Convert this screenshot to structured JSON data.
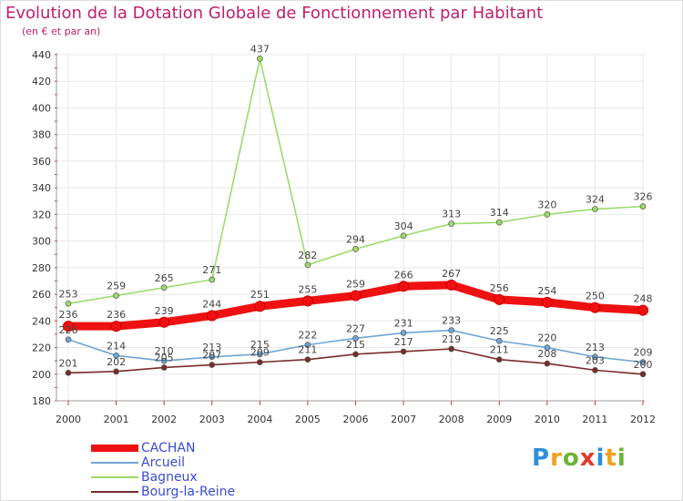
{
  "chart_data": {
    "type": "line",
    "title": "Evolution de la Dotation Globale de Fonctionnement par Habitant",
    "subtitle": "(en € et par an)",
    "x": [
      "2000",
      "2001",
      "2002",
      "2003",
      "2004",
      "2005",
      "2006",
      "2007",
      "2008",
      "2009",
      "2010",
      "2011",
      "2012"
    ],
    "ylim": [
      180,
      440
    ],
    "yticks": [
      180,
      200,
      220,
      240,
      260,
      280,
      300,
      320,
      340,
      360,
      380,
      400,
      420,
      440
    ],
    "grid": true,
    "series": [
      {
        "name": "CACHAN",
        "color": "#ee1111",
        "values": [
          236,
          236,
          239,
          244,
          251,
          255,
          259,
          266,
          267,
          256,
          254,
          250,
          248
        ],
        "labels": [
          "236",
          "236",
          "239",
          "244",
          "251",
          "255",
          "259",
          "266",
          "267",
          "256",
          "254",
          "250",
          "248"
        ]
      },
      {
        "name": "Arcueil",
        "color": "#6fa5d6",
        "values": [
          226,
          214,
          210,
          213,
          215,
          222,
          227,
          231,
          233,
          225,
          220,
          213,
          209
        ],
        "labels": [
          "226",
          "214",
          "210",
          "213",
          "215",
          "222",
          "227",
          "231",
          "233",
          "225",
          "220",
          "213",
          "209"
        ]
      },
      {
        "name": "Bagneux",
        "color": "#9bdb6b",
        "values": [
          253,
          259,
          265,
          271,
          437,
          282,
          294,
          304,
          313,
          314,
          320,
          324,
          326
        ],
        "labels": [
          "253",
          "259",
          "265",
          "271",
          "437",
          "282",
          "294",
          "304",
          "313",
          "314",
          "320",
          "324",
          "326"
        ]
      },
      {
        "name": "Bourg-la-Reine",
        "color": "#7a2b2b",
        "values": [
          201,
          202,
          205,
          207,
          209,
          211,
          215,
          217,
          219,
          211,
          208,
          203,
          200
        ],
        "labels": [
          "201",
          "202",
          "205",
          "207",
          "209",
          "211",
          "215",
          "217",
          "219",
          "211",
          "208",
          "203",
          "200"
        ]
      }
    ]
  },
  "brand": {
    "letters": [
      "P",
      "r",
      "o",
      "x",
      "i",
      "t",
      "i"
    ],
    "colors": [
      "#2e8fd9",
      "#f0a020",
      "#6ab534",
      "#e23a2a",
      "#2e8fd9",
      "#f0a020",
      "#6ab534"
    ]
  }
}
